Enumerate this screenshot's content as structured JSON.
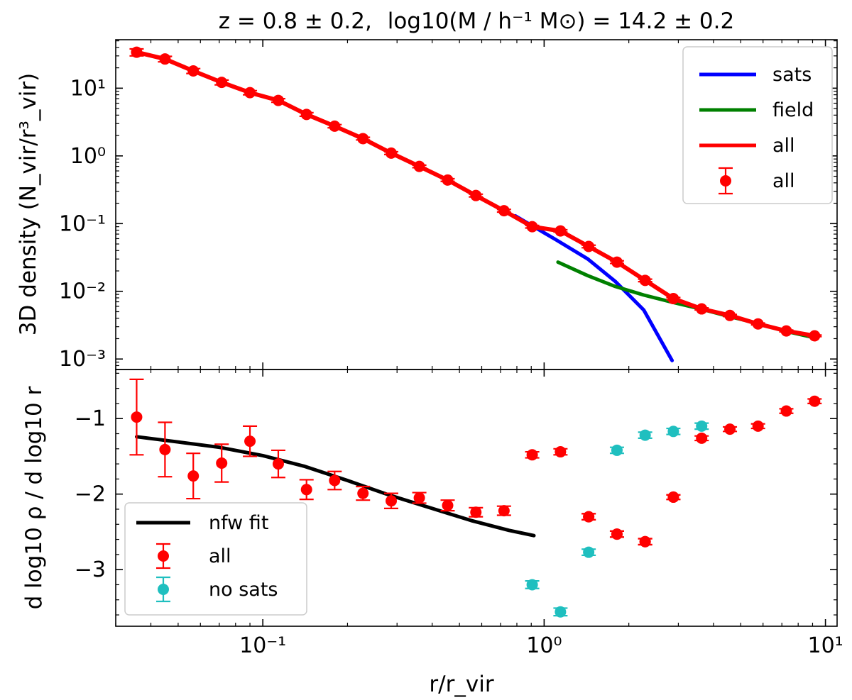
{
  "chart_data": {
    "type": "line",
    "title": {
      "z_part": "z = 0.8 ± 0.2,",
      "mass_part": "log10(M / h⁻¹ M⊙) = 14.2 ± 0.2"
    },
    "xlabel": "r/r_vir",
    "x_scale": "log",
    "xlim": [
      0.03,
      11
    ],
    "x_tick_labels": [
      "10⁻¹",
      "10⁰",
      "10¹"
    ],
    "grid": false,
    "top_panel": {
      "ylabel": "3D density (N_vir/r³_vir)",
      "y_scale": "log",
      "ylim": [
        0.0007,
        52
      ],
      "y_tick_labels": [
        "10⁻³",
        "10⁻²",
        "10⁻¹",
        "10⁰",
        "10¹"
      ],
      "legend_position": "upper right",
      "legend": [
        "sats",
        "field",
        "all",
        "all"
      ],
      "series": [
        {
          "name": "sats",
          "color": "#0000ff",
          "style": "line",
          "x": [
            0.79,
            1.1,
            1.43,
            1.79,
            2.26,
            2.85
          ],
          "y": [
            0.13,
            0.058,
            0.03,
            0.014,
            0.0053,
            0.00095
          ]
        },
        {
          "name": "field",
          "color": "#008000",
          "style": "line",
          "x": [
            1.12,
            1.43,
            1.79,
            2.26,
            2.85,
            3.59,
            4.5,
            5.66,
            7.14,
            9.0
          ],
          "y": [
            0.027,
            0.017,
            0.0118,
            0.0088,
            0.0069,
            0.0055,
            0.0043,
            0.0034,
            0.0026,
            0.0021
          ]
        },
        {
          "name": "all",
          "color": "#ff0000",
          "style": "line+markers",
          "x": [
            0.0356,
            0.0449,
            0.0566,
            0.0714,
            0.09,
            0.1135,
            0.143,
            0.18,
            0.227,
            0.286,
            0.36,
            0.454,
            0.572,
            0.72,
            0.907,
            1.143,
            1.44,
            1.815,
            2.286,
            2.88,
            3.63,
            4.575,
            5.76,
            7.26,
            9.15
          ],
          "y": [
            34.0,
            27.0,
            18.0,
            12.2,
            8.6,
            6.6,
            4.1,
            2.75,
            1.8,
            1.1,
            0.7,
            0.44,
            0.26,
            0.155,
            0.09,
            0.078,
            0.046,
            0.027,
            0.0145,
            0.0078,
            0.0055,
            0.0044,
            0.0033,
            0.0026,
            0.0022
          ],
          "err": [
            4.0,
            2.5,
            1.5,
            1.0,
            0.6,
            0.4,
            0.25,
            0.15,
            0.08,
            0.05,
            0.03,
            0.02,
            0.012,
            0.007,
            0.004,
            0.003,
            0.002,
            0.0012,
            0.0006,
            0.0003,
            0.0002,
            0.00015,
            0.0001,
            8e-05,
            6e-05
          ]
        }
      ]
    },
    "bottom_panel": {
      "ylabel": "d log10 ρ / d log10 r",
      "y_scale": "linear",
      "ylim": [
        -3.75,
        -0.35
      ],
      "y_ticks": [
        -1,
        -2,
        -3
      ],
      "y_tick_labels": [
        "−1",
        "−2",
        "−3"
      ],
      "legend_position": "lower left",
      "legend": [
        "nfw fit",
        "all",
        "no sats"
      ],
      "series": [
        {
          "name": "nfw fit",
          "color": "#000000",
          "style": "line",
          "x": [
            0.0356,
            0.05,
            0.07,
            0.1,
            0.14,
            0.2,
            0.28,
            0.4,
            0.55,
            0.75,
            0.92
          ],
          "y": [
            -1.24,
            -1.31,
            -1.38,
            -1.49,
            -1.63,
            -1.82,
            -2.01,
            -2.19,
            -2.35,
            -2.48,
            -2.55
          ]
        },
        {
          "name": "all",
          "color": "#ff0000",
          "style": "markers",
          "x": [
            0.0356,
            0.0449,
            0.0566,
            0.0714,
            0.09,
            0.1135,
            0.143,
            0.18,
            0.227,
            0.286,
            0.36,
            0.454,
            0.572,
            0.72,
            0.907,
            1.143,
            1.44,
            1.815,
            2.286,
            2.88,
            3.63,
            4.575,
            5.76,
            7.26,
            9.15,
            1.44,
            1.815,
            2.286,
            2.88
          ],
          "y": [
            -0.98,
            -1.41,
            -1.76,
            -1.59,
            -1.3,
            -1.6,
            -1.94,
            -1.82,
            -1.99,
            -2.09,
            -2.05,
            -2.15,
            -2.24,
            -2.22,
            -1.48,
            -1.44,
            -2.3,
            -2.53,
            -2.63,
            -2.04,
            -1.26,
            -1.14,
            -1.1,
            -0.9,
            -0.77,
            -2.3,
            -2.53,
            -2.63,
            -2.04
          ],
          "err": [
            0.5,
            0.36,
            0.3,
            0.25,
            0.2,
            0.18,
            0.13,
            0.12,
            0.09,
            0.1,
            0.07,
            0.07,
            0.06,
            0.06,
            0.04,
            0.04,
            0.04,
            0.04,
            0.04,
            0.03,
            0.03,
            0.03,
            0.03,
            0.03,
            0.03,
            0.04,
            0.04,
            0.04,
            0.03
          ]
        },
        {
          "name": "no sats",
          "color": "#1fbfbf",
          "style": "markers",
          "x": [
            0.907,
            1.143,
            1.44,
            1.815,
            2.286,
            2.88,
            3.63
          ],
          "y": [
            -3.2,
            -3.56,
            -2.77,
            -1.42,
            -1.22,
            -1.17,
            -1.1
          ],
          "err": [
            0.05,
            0.05,
            0.04,
            0.04,
            0.04,
            0.04,
            0.04
          ]
        }
      ]
    }
  }
}
